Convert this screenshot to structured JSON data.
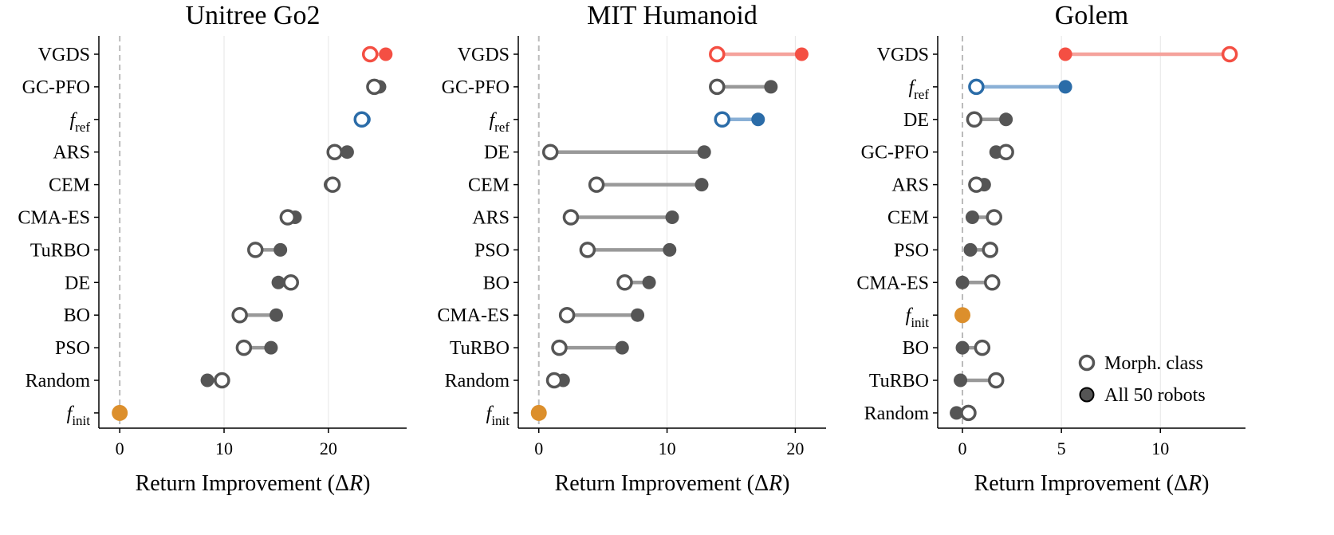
{
  "chart_data": [
    {
      "type": "dumbbell",
      "title": "Unitree Go2",
      "xlabel": "Return Improvement (ΔR)",
      "xlim": [
        -2,
        27.5
      ],
      "xticks": [
        0,
        10,
        20
      ],
      "grid": "vertical",
      "rows": [
        {
          "label": "VGDS",
          "morph": 24.0,
          "all": 25.5,
          "color": "#f44f43",
          "line": "#f5a29c"
        },
        {
          "label": "GC-PFO",
          "morph": 24.4,
          "all": 24.9,
          "color": "#555555",
          "line": "#999999"
        },
        {
          "label": "f_ref",
          "morph": 23.2,
          "all": 23.4,
          "color": "#2b6ca8",
          "line": "#8ab0d6"
        },
        {
          "label": "ARS",
          "morph": 20.6,
          "all": 21.8,
          "color": "#555555",
          "line": "#999999"
        },
        {
          "label": "CEM",
          "morph": 20.4,
          "all": 20.2,
          "color": "#555555",
          "line": "#999999"
        },
        {
          "label": "CMA-ES",
          "morph": 16.1,
          "all": 16.8,
          "color": "#555555",
          "line": "#999999"
        },
        {
          "label": "TuRBO",
          "morph": 13.0,
          "all": 15.4,
          "color": "#555555",
          "line": "#999999"
        },
        {
          "label": "DE",
          "morph": 16.4,
          "all": 15.2,
          "color": "#555555",
          "line": "#999999"
        },
        {
          "label": "BO",
          "morph": 11.5,
          "all": 15.0,
          "color": "#555555",
          "line": "#999999"
        },
        {
          "label": "PSO",
          "morph": 11.9,
          "all": 14.5,
          "color": "#555555",
          "line": "#999999"
        },
        {
          "label": "Random",
          "morph": 9.8,
          "all": 8.4,
          "color": "#555555",
          "line": "#999999"
        },
        {
          "label": "f_init",
          "morph": 0,
          "all": 0,
          "color": "#dc8f2c",
          "line": "#dc8f2c",
          "single": true
        }
      ]
    },
    {
      "type": "dumbbell",
      "title": "MIT Humanoid",
      "xlabel": "Return Improvement (ΔR)",
      "xlim": [
        -1.6,
        22.4
      ],
      "xticks": [
        0,
        10,
        20
      ],
      "grid": "vertical",
      "rows": [
        {
          "label": "VGDS",
          "morph": 13.9,
          "all": 20.5,
          "color": "#f44f43",
          "line": "#f5a29c"
        },
        {
          "label": "GC-PFO",
          "morph": 13.9,
          "all": 18.1,
          "color": "#555555",
          "line": "#999999"
        },
        {
          "label": "f_ref",
          "morph": 14.3,
          "all": 17.1,
          "color": "#2b6ca8",
          "line": "#8ab0d6"
        },
        {
          "label": "DE",
          "morph": 0.9,
          "all": 12.9,
          "color": "#555555",
          "line": "#999999"
        },
        {
          "label": "CEM",
          "morph": 4.5,
          "all": 12.7,
          "color": "#555555",
          "line": "#999999"
        },
        {
          "label": "ARS",
          "morph": 2.5,
          "all": 10.4,
          "color": "#555555",
          "line": "#999999"
        },
        {
          "label": "PSO",
          "morph": 3.8,
          "all": 10.2,
          "color": "#555555",
          "line": "#999999"
        },
        {
          "label": "BO",
          "morph": 6.7,
          "all": 8.6,
          "color": "#555555",
          "line": "#999999"
        },
        {
          "label": "CMA-ES",
          "morph": 2.2,
          "all": 7.7,
          "color": "#555555",
          "line": "#999999"
        },
        {
          "label": "TuRBO",
          "morph": 1.6,
          "all": 6.5,
          "color": "#555555",
          "line": "#999999"
        },
        {
          "label": "Random",
          "morph": 1.2,
          "all": 1.9,
          "color": "#555555",
          "line": "#999999"
        },
        {
          "label": "f_init",
          "morph": 0,
          "all": 0,
          "color": "#dc8f2c",
          "line": "#dc8f2c",
          "single": true
        }
      ]
    },
    {
      "type": "dumbbell",
      "title": "Golem",
      "xlabel": "Return Improvement (ΔR)",
      "xlim": [
        -1.25,
        14.3
      ],
      "xticks": [
        0,
        5,
        10
      ],
      "grid": "vertical",
      "legend": {
        "position": "bottom-right",
        "entries": [
          "Morph. class",
          "All 50 robots"
        ]
      },
      "rows": [
        {
          "label": "VGDS",
          "morph": 13.5,
          "all": 5.2,
          "color": "#f44f43",
          "line": "#f5a29c"
        },
        {
          "label": "f_ref",
          "morph": 0.7,
          "all": 5.2,
          "color": "#2b6ca8",
          "line": "#8ab0d6"
        },
        {
          "label": "DE",
          "morph": 0.6,
          "all": 2.2,
          "color": "#555555",
          "line": "#999999"
        },
        {
          "label": "GC-PFO",
          "morph": 2.2,
          "all": 1.7,
          "color": "#555555",
          "line": "#999999"
        },
        {
          "label": "ARS",
          "morph": 0.7,
          "all": 1.1,
          "color": "#555555",
          "line": "#999999"
        },
        {
          "label": "CEM",
          "morph": 1.6,
          "all": 0.5,
          "color": "#555555",
          "line": "#999999"
        },
        {
          "label": "PSO",
          "morph": 1.4,
          "all": 0.4,
          "color": "#555555",
          "line": "#999999"
        },
        {
          "label": "CMA-ES",
          "morph": 1.5,
          "all": 0.0,
          "color": "#555555",
          "line": "#999999"
        },
        {
          "label": "f_init",
          "morph": 0,
          "all": 0,
          "color": "#dc8f2c",
          "line": "#dc8f2c",
          "single": true
        },
        {
          "label": "BO",
          "morph": 1.0,
          "all": 0.0,
          "color": "#555555",
          "line": "#999999"
        },
        {
          "label": "TuRBO",
          "morph": 1.7,
          "all": -0.1,
          "color": "#555555",
          "line": "#999999"
        },
        {
          "label": "Random",
          "morph": 0.3,
          "all": -0.3,
          "color": "#555555",
          "line": "#999999"
        }
      ]
    }
  ]
}
